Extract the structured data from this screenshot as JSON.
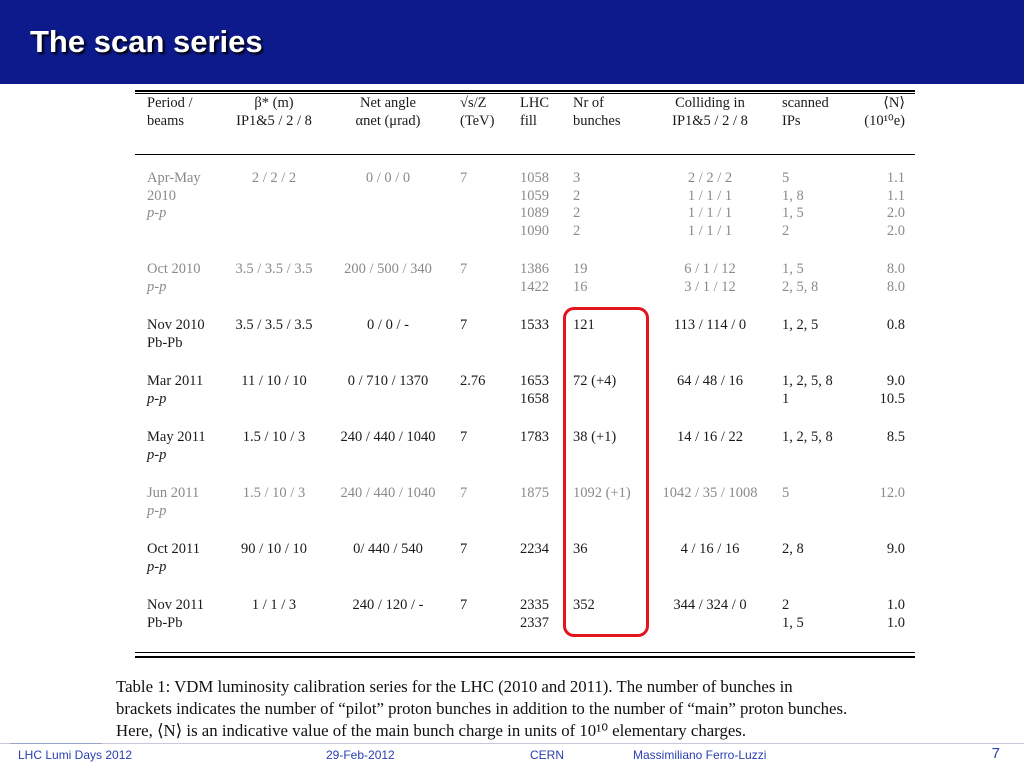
{
  "slide": {
    "title": "The scan series",
    "page_number": "7"
  },
  "footer": {
    "event": "LHC Lumi Days 2012",
    "date": "29-Feb-2012",
    "org": "CERN",
    "author": "Massimiliano Ferro-Luzzi"
  },
  "table": {
    "headers": [
      [
        "Period /",
        "beams"
      ],
      [
        "β* (m)",
        "IP1&5 / 2 / 8"
      ],
      [
        "Net angle",
        "αnet (μrad)"
      ],
      [
        "√s/Z",
        "(TeV)"
      ],
      [
        "LHC",
        "fill"
      ],
      [
        "Nr of",
        "bunches"
      ],
      [
        "Colliding in",
        "IP1&5 / 2 / 8"
      ],
      [
        "scanned",
        "IPs"
      ],
      [
        "⟨N⟩",
        "(10¹⁰e)"
      ]
    ],
    "rows": [
      {
        "period": "Apr-May",
        "year": "2010",
        "beams": "p-p",
        "beta": "2 / 2 / 2",
        "angle": "0 / 0 / 0",
        "energy": "7",
        "fills": [
          "1058",
          "1059",
          "1089",
          "1090"
        ],
        "bunches": [
          "3",
          "2",
          "2",
          "2"
        ],
        "colliding": [
          "2 / 2 / 2",
          "1 / 1 / 1",
          "1 / 1 / 1",
          "1 / 1 / 1"
        ],
        "ips": [
          "5",
          "1, 8",
          "1, 5",
          "2"
        ],
        "n": [
          "1.1",
          "1.1",
          "2.0",
          "2.0"
        ]
      },
      {
        "period": "Oct 2010",
        "beams": "p-p",
        "beta": "3.5 / 3.5 / 3.5",
        "angle": "200 / 500 / 340",
        "energy": "7",
        "fills": [
          "1386",
          "1422"
        ],
        "bunches": [
          "19",
          "16"
        ],
        "colliding": [
          "6 / 1 / 12",
          "3 / 1 / 12"
        ],
        "ips": [
          "1, 5",
          "2, 5, 8"
        ],
        "n": [
          "8.0",
          "8.0"
        ]
      },
      {
        "period": "Nov 2010",
        "beams": "Pb-Pb",
        "beta": "3.5 / 3.5 / 3.5",
        "angle": "0 / 0 / -",
        "energy": "7",
        "fills": [
          "1533"
        ],
        "bunches": [
          "121"
        ],
        "colliding": [
          "113 / 114 / 0"
        ],
        "ips": [
          "1, 2, 5"
        ],
        "n": [
          "0.8"
        ]
      },
      {
        "period": "Mar 2011",
        "beams": "p-p",
        "beta": "11 / 10 / 10",
        "angle": "0 / 710 / 1370",
        "energy": "2.76",
        "fills": [
          "1653",
          "1658"
        ],
        "bunches": [
          "72 (+4)"
        ],
        "colliding": [
          "64 / 48 / 16"
        ],
        "ips": [
          "1, 2, 5, 8",
          "1"
        ],
        "n": [
          "9.0",
          "10.5"
        ]
      },
      {
        "period": "May 2011",
        "beams": "p-p",
        "beta": "1.5 / 10 / 3",
        "angle": "240 / 440 / 1040",
        "energy": "7",
        "fills": [
          "1783"
        ],
        "bunches": [
          "38 (+1)"
        ],
        "colliding": [
          "14 / 16 / 22"
        ],
        "ips": [
          "1, 2, 5, 8"
        ],
        "n": [
          "8.5"
        ]
      },
      {
        "period": "Jun 2011",
        "beams": "p-p",
        "beta": "1.5 / 10 / 3",
        "angle": "240 / 440 / 1040",
        "energy": "7",
        "fills": [
          "1875"
        ],
        "bunches": [
          "1092 (+1)"
        ],
        "colliding": [
          "1042 / 35 / 1008"
        ],
        "ips": [
          "5"
        ],
        "n": [
          "12.0"
        ]
      },
      {
        "period": "Oct 2011",
        "beams": "p-p",
        "beta": "90 / 10 / 10",
        "angle": "0/ 440 / 540",
        "energy": "7",
        "fills": [
          "2234"
        ],
        "bunches": [
          "36"
        ],
        "colliding": [
          "4 / 16 / 16"
        ],
        "ips": [
          "2, 8"
        ],
        "n": [
          "9.0"
        ]
      },
      {
        "period": "Nov 2011",
        "beams": "Pb-Pb",
        "beta": "1 / 1 / 3",
        "angle": "240 / 120 / -",
        "energy": "7",
        "fills": [
          "2335",
          "2337"
        ],
        "bunches": [
          "352"
        ],
        "colliding": [
          "344 / 324 / 0"
        ],
        "ips": [
          "2",
          "1, 5"
        ],
        "n": [
          "1.0",
          "1.0"
        ]
      }
    ]
  },
  "caption": {
    "line1": "Table 1: VDM luminosity calibration series for the LHC (2010 and 2011). The number of bunches in",
    "line2": "brackets indicates the number of “pilot” proton bunches in addition to the number of “main” proton bunches.",
    "line3": "Here, ⟨N⟩ is an indicative value of the main bunch charge in units of 10¹⁰ elementary charges."
  }
}
